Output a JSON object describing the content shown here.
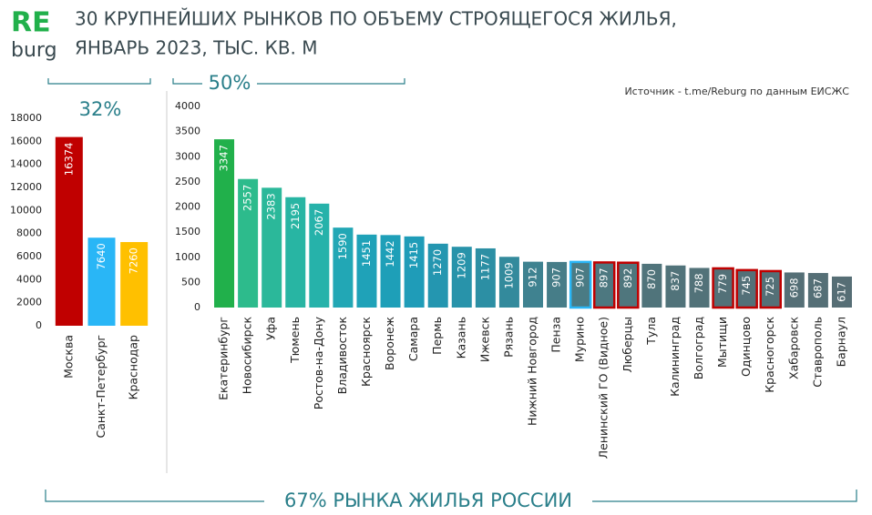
{
  "brand": {
    "top": "RE",
    "bottom": "burg"
  },
  "title": [
    "30 КРУПНЕЙШИХ РЫНКОВ ПО ОБЪЕМУ СТРОЯЩЕГОСЯ ЖИЛЬЯ,",
    "ЯНВАРЬ 2023, ТЫС. КВ. М"
  ],
  "source": "Источник - t.me/Reburg по данным ЕИСЖС",
  "footer": "67% РЫНКА ЖИЛЬЯ РОССИИ",
  "chart_data": [
    {
      "type": "bar",
      "annotation": "32%",
      "categories": [
        "Москва",
        "Санкт-Петербург",
        "Краснодар"
      ],
      "values": [
        16374,
        7640,
        7260
      ],
      "colors": [
        "#c00000",
        "#29b6f6",
        "#ffc000"
      ],
      "ylim": [
        0,
        18000
      ],
      "yticks": [
        0,
        2000,
        4000,
        6000,
        8000,
        10000,
        12000,
        14000,
        16000,
        18000
      ]
    },
    {
      "type": "bar",
      "annotation": "50%",
      "categories": [
        "Екатеринбург",
        "Новосибирск",
        "Уфа",
        "Тюмень",
        "Ростов-на-Дону",
        "Владивосток",
        "Красноярск",
        "Воронеж",
        "Самара",
        "Пермь",
        "Казань",
        "Ижевск",
        "Рязань",
        "Нижний Новгород",
        "Пенза",
        "Мурино",
        "Ленинский ГО (Видное)",
        "Люберцы",
        "Тула",
        "Калининград",
        "Волгоград",
        "Мытищи",
        "Одинцово",
        "Красногорск",
        "Хабаровск",
        "Ставрополь",
        "Барнаул"
      ],
      "values": [
        3347,
        2557,
        2383,
        2195,
        2067,
        1590,
        1451,
        1442,
        1415,
        1270,
        1209,
        1177,
        1009,
        912,
        907,
        907,
        897,
        892,
        870,
        837,
        788,
        779,
        745,
        725,
        698,
        687,
        617
      ],
      "colors": [
        "#21b04b",
        "#2dbb8c",
        "#2bb89a",
        "#28b5a3",
        "#26b2aa",
        "#22a7b5",
        "#1fa2b8",
        "#1e9fb8",
        "#1f9cb8",
        "#2496b0",
        "#2893aa",
        "#2c8fa4",
        "#338a9c",
        "#3f8290",
        "#467d88",
        "#4a7b84",
        "#4d7880",
        "#4f767d",
        "#50747b",
        "#51737a",
        "#527279",
        "#537178",
        "#537078",
        "#547077",
        "#556f76",
        "#556f76",
        "#566e75"
      ],
      "outline_colors": [
        null,
        null,
        null,
        null,
        null,
        null,
        null,
        null,
        null,
        null,
        null,
        null,
        null,
        null,
        null,
        "#29b6f6",
        "#c00000",
        "#c00000",
        null,
        null,
        null,
        "#c00000",
        "#c00000",
        "#c00000",
        null,
        null,
        null
      ],
      "ylim": [
        0,
        4000
      ],
      "yticks": [
        0,
        500,
        1000,
        1500,
        2000,
        2500,
        3000,
        3500,
        4000
      ]
    }
  ]
}
